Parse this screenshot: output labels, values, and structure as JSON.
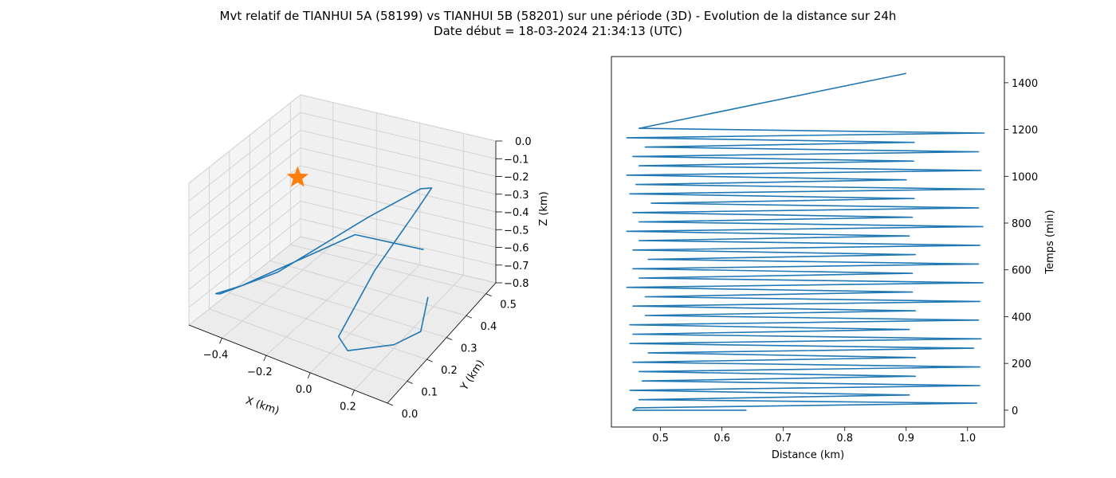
{
  "title_line1": "Mvt relatif de TIANHUI 5A (58199) vs TIANHUI 5B (58201) sur une période (3D) - Evolution de la distance sur 24h",
  "title_line2": "Date début = 18-03-2024 21:34:13 (UTC)",
  "colors": {
    "line": "#1f77b4",
    "marker": "#ff7f0e",
    "pane": "#f2f2f2",
    "grid": "#d0d0d0"
  },
  "chart_data": [
    {
      "type": "line3d",
      "xlabel": "X (km)",
      "ylabel": "Y (km)",
      "zlabel": "Z (km)",
      "xticks": [
        "−0.4",
        "−0.2",
        "0.0",
        "0.2"
      ],
      "yticks": [
        "0.0",
        "0.1",
        "0.2",
        "0.3",
        "0.4",
        "0.5"
      ],
      "zticks": [
        "0.0",
        "−0.1",
        "−0.2",
        "−0.3",
        "−0.4",
        "−0.5",
        "−0.6",
        "−0.7",
        "−0.8"
      ],
      "xlim": [
        -0.55,
        0.35
      ],
      "ylim": [
        0.0,
        0.55
      ],
      "zlim": [
        -0.8,
        0.0
      ],
      "marker": {
        "shape": "star",
        "x": -0.47,
        "y": 0.45,
        "z": -0.35
      },
      "points": [
        [
          0.22,
          0.35,
          -0.68
        ],
        [
          0.25,
          0.28,
          -0.78
        ],
        [
          0.2,
          0.2,
          -0.78
        ],
        [
          0.08,
          0.1,
          -0.75
        ],
        [
          0.02,
          0.12,
          -0.72
        ],
        [
          0.02,
          0.3,
          -0.55
        ],
        [
          0.08,
          0.45,
          -0.35
        ],
        [
          0.1,
          0.5,
          -0.28
        ],
        [
          0.05,
          0.5,
          -0.3
        ],
        [
          -0.1,
          0.4,
          -0.4
        ],
        [
          -0.35,
          0.22,
          -0.62
        ],
        [
          -0.52,
          0.12,
          -0.72
        ],
        [
          -0.52,
          0.1,
          -0.7
        ],
        [
          -0.4,
          0.1,
          -0.6
        ],
        [
          -0.05,
          0.28,
          -0.35
        ],
        [
          0.2,
          0.35,
          -0.42
        ]
      ]
    },
    {
      "type": "line",
      "xlabel": "Distance (km)",
      "ylabel": "Temps (min)",
      "xlim": [
        0.42,
        1.06
      ],
      "ylim": [
        -72,
        1512
      ],
      "xticks": [
        0.5,
        0.6,
        0.7,
        0.8,
        0.9,
        1.0
      ],
      "xtick_labels": [
        "0.5",
        "0.6",
        "0.7",
        "0.8",
        "0.9",
        "1.0"
      ],
      "yticks": [
        0,
        200,
        400,
        600,
        800,
        1000,
        1200,
        1400
      ],
      "ytick_labels": [
        "0",
        "200",
        "400",
        "600",
        "800",
        "1000",
        "1200",
        "1400"
      ],
      "series": [
        {
          "x": [
            0.64,
            0.455,
            0.46,
            1.015,
            0.465,
            0.905,
            0.45,
            1.02,
            0.47,
            0.915,
            0.465,
            1.02,
            0.455,
            0.915,
            0.48,
            1.01,
            0.45,
            1.022,
            0.455,
            0.905,
            0.45,
            1.018,
            0.475,
            0.915,
            0.455,
            1.02,
            0.475,
            0.91,
            0.445,
            1.025,
            0.465,
            0.91,
            0.455,
            1.018,
            0.48,
            0.915,
            0.455,
            1.02,
            0.465,
            0.905,
            0.445,
            1.025,
            0.465,
            0.91,
            0.455,
            1.018,
            0.485,
            0.913,
            0.45,
            1.027,
            0.46,
            0.9,
            0.445,
            1.022,
            0.465,
            0.912,
            0.455,
            1.018,
            0.475,
            0.913,
            0.445,
            1.027,
            0.465,
            0.9
          ],
          "y": [
            0,
            0,
            10,
            30,
            45,
            65,
            85,
            105,
            125,
            145,
            165,
            185,
            205,
            225,
            245,
            265,
            285,
            305,
            325,
            345,
            365,
            385,
            405,
            425,
            445,
            465,
            485,
            505,
            525,
            545,
            565,
            585,
            605,
            625,
            645,
            665,
            685,
            705,
            725,
            745,
            765,
            785,
            805,
            825,
            845,
            865,
            885,
            905,
            925,
            945,
            965,
            985,
            1005,
            1025,
            1045,
            1065,
            1085,
            1105,
            1125,
            1145,
            1165,
            1185,
            1205,
            1440
          ]
        }
      ]
    }
  ]
}
